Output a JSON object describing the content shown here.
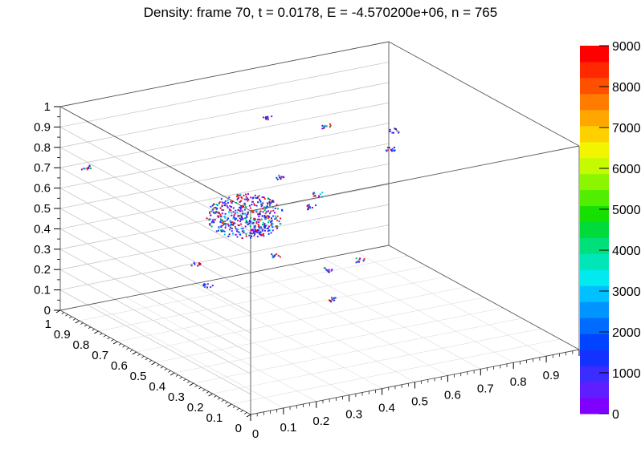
{
  "title": "Density: frame 70, t = 0.0178, E = -4.570200e+06, n = 765",
  "chart_data": {
    "type": "scatter",
    "subtype": "3d-scatter-with-color-scale",
    "title": "Density: frame 70, t = 0.0178, E = -4.570200e+06, n = 765",
    "axes": {
      "x": {
        "range": [
          0,
          1
        ],
        "tick_labels": [
          "0",
          "0.1",
          "0.2",
          "0.3",
          "0.4",
          "0.5",
          "0.6",
          "0.7",
          "0.8",
          "0.9"
        ]
      },
      "y": {
        "range": [
          0,
          1
        ],
        "tick_labels": [
          "0",
          "0.1",
          "0.2",
          "0.3",
          "0.4",
          "0.5",
          "0.6",
          "0.7",
          "0.8",
          "0.9",
          "1"
        ]
      },
      "z": {
        "range": [
          0,
          1
        ],
        "tick_labels": [
          "0",
          "0.1",
          "0.2",
          "0.3",
          "0.4",
          "0.5",
          "0.6",
          "0.7",
          "0.8",
          "0.9",
          "1"
        ]
      }
    },
    "grid": true,
    "colorbar": {
      "range": [
        0,
        9000
      ],
      "tick_labels": [
        "0",
        "1000",
        "2000",
        "3000",
        "4000",
        "5000",
        "6000",
        "7000",
        "8000",
        "9000"
      ],
      "colors": [
        "#7f00ff",
        "#5f1eff",
        "#3b2cff",
        "#1432ff",
        "#0044ff",
        "#006cff",
        "#0094ff",
        "#00c0ff",
        "#00eaf0",
        "#00e6b8",
        "#00e07a",
        "#00da3a",
        "#16e000",
        "#52ee00",
        "#8cf500",
        "#c6fa00",
        "#f2f400",
        "#ffd000",
        "#ffa600",
        "#ff7c00",
        "#ff5000",
        "#ff2800",
        "#ff0000"
      ]
    },
    "clusters": [
      {
        "x": 0.02,
        "y": 0.9,
        "z": 0.75,
        "count": 10
      },
      {
        "x": 0.6,
        "y": 0.95,
        "z": 0.78,
        "count": 10
      },
      {
        "x": 0.75,
        "y": 0.9,
        "z": 0.72,
        "count": 10
      },
      {
        "x": 0.9,
        "y": 0.8,
        "z": 0.7,
        "count": 10
      },
      {
        "x": 0.8,
        "y": 0.65,
        "z": 0.72,
        "count": 12
      },
      {
        "x": 0.52,
        "y": 0.75,
        "z": 0.62,
        "count": 10
      },
      {
        "x": 0.55,
        "y": 0.6,
        "z": 0.6,
        "count": 12
      },
      {
        "x": 0.5,
        "y": 0.55,
        "z": 0.58,
        "count": 10
      },
      {
        "x": 0.3,
        "y": 0.55,
        "z": 0.6,
        "count": 600
      },
      {
        "x": 0.25,
        "y": 0.3,
        "z": 0.55,
        "count": 10
      },
      {
        "x": 0.12,
        "y": 0.5,
        "z": 0.45,
        "count": 10
      },
      {
        "x": 0.1,
        "y": 0.4,
        "z": 0.4,
        "count": 10
      },
      {
        "x": 0.35,
        "y": 0.2,
        "z": 0.5,
        "count": 10
      },
      {
        "x": 0.42,
        "y": 0.15,
        "z": 0.55,
        "count": 10
      },
      {
        "x": 0.3,
        "y": 0.1,
        "z": 0.42,
        "count": 10
      }
    ]
  }
}
